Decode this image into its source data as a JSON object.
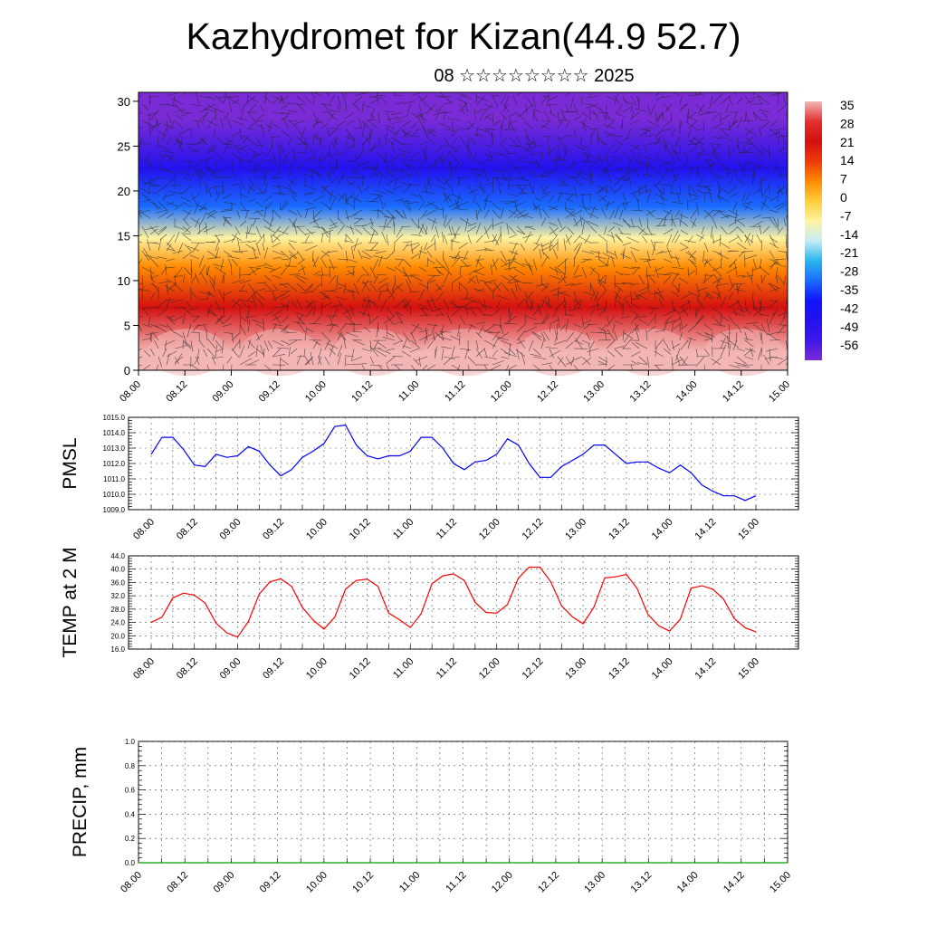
{
  "title": "Kazhydromet for Kizan(44.9 52.7)",
  "subtitle": "08 ☆☆☆☆☆☆☆☆ 2025",
  "colorbar": {
    "labels": [
      "35",
      "28",
      "21",
      "14",
      "7",
      "0",
      "-7",
      "-14",
      "-21",
      "-28",
      "-35",
      "-42",
      "-49",
      "-56"
    ],
    "colors": [
      "#f3b7b7",
      "#e33030",
      "#d41010",
      "#ee3a0a",
      "#ff8a00",
      "#ffce3a",
      "#fff3a0",
      "#c6ecf6",
      "#2ab6ee",
      "#1a6cff",
      "#1313ff",
      "#2212ee",
      "#4018ea",
      "#7a2bd6"
    ]
  },
  "chart_data": [
    {
      "type": "heatmap",
      "name": "cross-section",
      "ylim": [
        0,
        31
      ],
      "yticks": [
        "0",
        "5",
        "10",
        "15",
        "20",
        "25",
        "30"
      ],
      "xticks": [
        "08.00",
        "08.12",
        "09.00",
        "09.12",
        "10.00",
        "10.12",
        "11.00",
        "11.12",
        "12.00",
        "12.12",
        "13.00",
        "13.12",
        "14.00",
        "14.12",
        "15.00"
      ],
      "bands": [
        {
          "from": 0,
          "to": 4,
          "value": 33
        },
        {
          "from": 4,
          "to": 10,
          "value": 22
        },
        {
          "from": 10,
          "to": 13,
          "value": 10
        },
        {
          "from": 13,
          "to": 16.5,
          "value": -5
        },
        {
          "from": 16.5,
          "to": 20,
          "value": -25
        },
        {
          "from": 20,
          "to": 25,
          "value": -45
        },
        {
          "from": 25,
          "to": 31,
          "value": -56
        }
      ]
    },
    {
      "type": "line",
      "name": "pmsl",
      "ylabel": "PMSL",
      "ylim": [
        1009.0,
        1015.0
      ],
      "yticks": [
        "1015.0",
        "1014.0",
        "1013.0",
        "1012.0",
        "1011.0",
        "1010.0",
        "1009.0"
      ],
      "xticks": [
        "08.00",
        "08.12",
        "09.00",
        "09.12",
        "10.00",
        "10.12",
        "11.00",
        "11.12",
        "12.00",
        "12.12",
        "13.00",
        "13.12",
        "14.00",
        "14.12",
        "15.00"
      ],
      "color": "#0000ff",
      "x_hours": [
        0,
        3,
        6,
        9,
        12,
        15,
        18,
        21,
        24,
        27,
        30,
        33,
        36,
        39,
        42,
        45,
        48,
        51,
        54,
        57,
        60,
        63,
        66,
        69,
        72,
        75,
        78,
        81,
        84,
        87,
        90,
        93,
        96,
        99,
        102,
        105,
        108,
        111,
        114,
        117,
        120,
        123,
        126,
        129,
        132,
        135,
        138,
        141,
        144,
        147,
        150,
        153,
        156,
        159,
        162,
        165,
        168
      ],
      "values": [
        1012.6,
        1013.7,
        1013.7,
        1012.9,
        1011.9,
        1011.8,
        1012.6,
        1012.4,
        1012.5,
        1013.1,
        1012.8,
        1011.9,
        1011.2,
        1011.6,
        1012.4,
        1012.8,
        1013.3,
        1014.4,
        1014.5,
        1013.2,
        1012.5,
        1012.3,
        1012.5,
        1012.5,
        1012.8,
        1013.7,
        1013.7,
        1013.0,
        1012.0,
        1011.6,
        1012.1,
        1012.2,
        1012.6,
        1013.6,
        1013.2,
        1012.0,
        1011.1,
        1011.1,
        1011.8,
        1012.2,
        1012.6,
        1013.2,
        1013.2,
        1012.6,
        1012.0,
        1012.1,
        1012.1,
        1011.7,
        1011.4,
        1011.9,
        1011.4,
        1010.6,
        1010.2,
        1009.9,
        1009.9,
        1009.6,
        1009.9
      ]
    },
    {
      "type": "line",
      "name": "temp2m",
      "ylabel": "TEMP at 2 M",
      "ylim": [
        16.0,
        44.0
      ],
      "yticks": [
        "44.0",
        "40.0",
        "36.0",
        "32.0",
        "28.0",
        "24.0",
        "20.0",
        "16.0"
      ],
      "xticks": [
        "08.00",
        "08.12",
        "09.00",
        "09.12",
        "10.00",
        "10.12",
        "11.00",
        "11.12",
        "12.00",
        "12.12",
        "13.00",
        "13.12",
        "14.00",
        "14.12",
        "15.00"
      ],
      "color": "#ff0000",
      "x_hours": [
        0,
        3,
        6,
        9,
        12,
        15,
        18,
        21,
        24,
        27,
        30,
        33,
        36,
        39,
        42,
        45,
        48,
        51,
        54,
        57,
        60,
        63,
        66,
        69,
        72,
        75,
        78,
        81,
        84,
        87,
        90,
        93,
        96,
        99,
        102,
        105,
        108,
        111,
        114,
        117,
        120,
        123,
        126,
        129,
        132,
        135,
        138,
        141,
        144,
        147,
        150,
        153,
        156,
        159,
        162,
        165,
        168
      ],
      "values": [
        24.0,
        25.6,
        31.4,
        32.8,
        32.2,
        29.8,
        23.8,
        20.9,
        19.6,
        24.3,
        32.5,
        36.2,
        37.1,
        34.8,
        28.5,
        24.7,
        22.0,
        25.6,
        34.0,
        36.6,
        37.0,
        34.8,
        26.8,
        24.8,
        22.5,
        26.6,
        35.6,
        38.0,
        38.6,
        36.6,
        30.0,
        27.0,
        26.8,
        29.4,
        37.3,
        40.6,
        40.6,
        36.2,
        29.0,
        25.7,
        23.6,
        28.6,
        37.4,
        37.7,
        38.4,
        34.2,
        26.4,
        23.0,
        21.4,
        25.0,
        34.3,
        35.0,
        34.0,
        31.0,
        25.2,
        22.4,
        21.2
      ]
    },
    {
      "type": "line",
      "name": "precip",
      "ylabel": "PRECIP, mm",
      "ylim": [
        0.0,
        1.0
      ],
      "yticks": [
        "1.0",
        "0.8",
        "0.6",
        "0.4",
        "0.2",
        "0.0"
      ],
      "xticks": [
        "08.00",
        "08.12",
        "09.00",
        "09.12",
        "10.00",
        "10.12",
        "11.00",
        "11.12",
        "12.00",
        "12.12",
        "13.00",
        "13.12",
        "14.00",
        "14.12",
        "15.00"
      ],
      "color": "#00a000",
      "x_hours": [
        0,
        3,
        6,
        9,
        12,
        15,
        18,
        21,
        24,
        27,
        30,
        33,
        36,
        39,
        42,
        45,
        48,
        51,
        54,
        57,
        60,
        63,
        66,
        69,
        72,
        75,
        78,
        81,
        84,
        87,
        90,
        93,
        96,
        99,
        102,
        105,
        108,
        111,
        114,
        117,
        120,
        123,
        126,
        129,
        132,
        135,
        138,
        141,
        144,
        147,
        150,
        153,
        156,
        159,
        162,
        165,
        168
      ],
      "values": [
        0,
        0,
        0,
        0,
        0,
        0,
        0,
        0,
        0,
        0,
        0,
        0,
        0,
        0,
        0,
        0,
        0,
        0,
        0,
        0,
        0,
        0,
        0,
        0,
        0,
        0,
        0,
        0,
        0,
        0,
        0,
        0,
        0,
        0,
        0,
        0,
        0,
        0,
        0,
        0,
        0,
        0,
        0,
        0,
        0,
        0,
        0,
        0,
        0,
        0,
        0,
        0,
        0,
        0,
        0,
        0,
        0
      ]
    }
  ]
}
